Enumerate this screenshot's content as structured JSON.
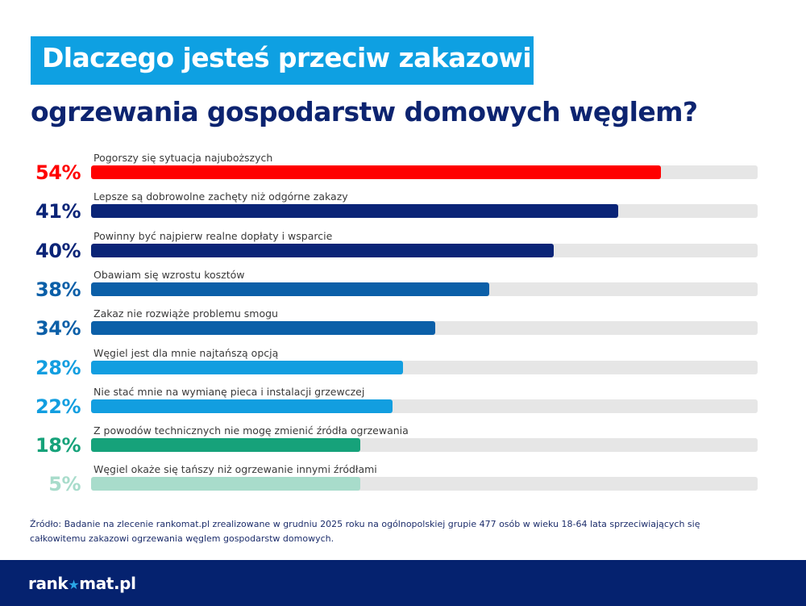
{
  "title": {
    "line1": "Dlaczego jesteś przeciw zakazowi",
    "line2": "ogrzewania gospodarstw domowych węglem?"
  },
  "colors": {
    "title_box": "#0ea0e2",
    "title_text": "#0d2470",
    "track": "#e6e6e6",
    "footer": "#05226f"
  },
  "chart_data": {
    "type": "bar",
    "orientation": "horizontal",
    "title": "Dlaczego jesteś przeciw zakazowi ogrzewania gospodarstw domowych węglem?",
    "xlabel": "",
    "ylabel": "",
    "categories": [
      "Pogorszy się sytuacja najuboższych",
      "Lepsze są dobrowolne zachęty niż odgórne zakazy",
      "Powinny być najpierw realne dopłaty i wsparcie",
      "Obawiam się wzrostu kosztów",
      "Zakaz nie rozwiąże problemu smogu",
      "Węgiel jest dla mnie najtańszą opcją",
      "Nie stać mnie na wymianę pieca i instalacji grzewczej",
      "Z powodów technicznych nie mogę zmienić źródła ogrzewania",
      "Węgiel okaże się tańszy niż ogrzewanie innymi źródłami"
    ],
    "values": [
      54,
      41,
      40,
      38,
      34,
      28,
      22,
      18,
      5
    ],
    "labels": [
      "54%",
      "41%",
      "40%",
      "38%",
      "34%",
      "28%",
      "22%",
      "18%",
      "5%"
    ],
    "bar_fill_fraction": [
      0.855,
      0.791,
      0.694,
      0.597,
      0.516,
      0.468,
      0.452,
      0.404,
      0.404
    ],
    "colors": [
      "#ff0000",
      "#0a2477",
      "#0a2477",
      "#0b5fa8",
      "#0b5fa8",
      "#129ee0",
      "#129ee0",
      "#16a27a",
      "#a8dccb"
    ],
    "grid": false,
    "legend": "none"
  },
  "source": "Źródło: Badanie na zlecenie rankomat.pl zrealizowane w grudniu 2025 roku na ogólnopolskiej grupie 477 osób w wieku 18-64 lata sprzeciwiających się całkowitemu zakazowi ogrzewania węglem gospodarstw domowych.",
  "footer": {
    "logo_left": "rank",
    "logo_star": "★",
    "logo_right": "mat.pl"
  }
}
